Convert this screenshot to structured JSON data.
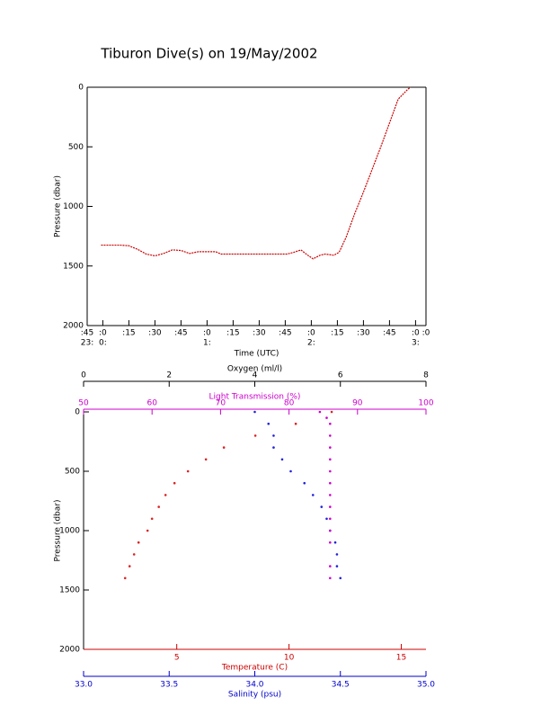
{
  "chart_data": [
    {
      "type": "line",
      "title": "Tiburon Dive(s) on 19/May/2002",
      "ylabel": "Pressure (dbar)",
      "xlabel": "Time (UTC)",
      "ylim": [
        0,
        2000
      ],
      "y_inverted": true,
      "yticks": [
        0,
        500,
        1000,
        1500,
        2000
      ],
      "xlim": [
        -9,
        186
      ],
      "xticks": [
        {
          "value": -9,
          "label": ":45",
          "hour": "23:"
        },
        {
          "value": 0,
          "label": ":0",
          "hour": "0:"
        },
        {
          "value": 15,
          "label": ":15"
        },
        {
          "value": 30,
          "label": ":30"
        },
        {
          "value": 45,
          "label": ":45"
        },
        {
          "value": 60,
          "label": ":0",
          "hour": "1:"
        },
        {
          "value": 75,
          "label": ":15"
        },
        {
          "value": 90,
          "label": ":30"
        },
        {
          "value": 105,
          "label": ":45"
        },
        {
          "value": 120,
          "label": ":0",
          "hour": "2:"
        },
        {
          "value": 135,
          "label": ":15"
        },
        {
          "value": 150,
          "label": ":30"
        },
        {
          "value": 165,
          "label": ":45"
        },
        {
          "value": 180,
          "label": ":0",
          "hour": "3:"
        },
        {
          "value": 186,
          "label": ":0"
        }
      ],
      "color": "#cc0000",
      "x": [
        -1,
        5,
        10,
        15,
        20,
        25,
        30,
        35,
        40,
        45,
        50,
        55,
        65,
        68,
        80,
        90,
        100,
        106,
        110,
        114,
        118,
        121,
        125,
        128,
        133,
        136,
        140,
        145,
        150,
        155,
        160,
        165,
        170,
        175,
        177
      ],
      "values": [
        1325,
        1325,
        1325,
        1330,
        1360,
        1400,
        1415,
        1395,
        1365,
        1370,
        1395,
        1380,
        1380,
        1400,
        1400,
        1400,
        1400,
        1400,
        1385,
        1365,
        1410,
        1440,
        1410,
        1400,
        1410,
        1385,
        1260,
        1060,
        880,
        690,
        500,
        300,
        100,
        25,
        0
      ]
    },
    {
      "type": "scatter",
      "ylabel": "Pressure (dbar)",
      "ylim": [
        0,
        2000
      ],
      "y_inverted": true,
      "yticks": [
        0,
        500,
        1000,
        1500,
        2000
      ],
      "x_axes": [
        {
          "label": "Oxygen (ml/l)",
          "color": "#000000",
          "position": "top",
          "xlim": [
            0,
            8
          ],
          "xticks": [
            0,
            2,
            4,
            6,
            8
          ]
        },
        {
          "label": "Light Transmission (%)",
          "color": "#cc00cc",
          "position": "top",
          "xlim": [
            50,
            100
          ],
          "xticks": [
            50,
            60,
            70,
            80,
            90,
            100
          ]
        },
        {
          "label": "Temperature (C)",
          "color": "#cc0000",
          "position": "bottom",
          "xlim": [
            0.85,
            16.1
          ],
          "xticks": [
            5,
            10,
            15
          ]
        },
        {
          "label": "Salinity (psu)",
          "color": "#0000cc",
          "position": "bottom",
          "xlim": [
            33,
            35
          ],
          "xticks": [
            {
              "value": 33,
              "label": "33.0"
            },
            {
              "value": 33.5,
              "label": "33.5"
            },
            {
              "value": 34,
              "label": "34.0"
            },
            {
              "value": 34.5,
              "label": "34.5"
            },
            {
              "value": 35,
              "label": "35.0"
            }
          ]
        }
      ],
      "series": [
        {
          "axis": 2,
          "color": "#dd2222",
          "x": [
            11.9,
            10.3,
            8.5,
            7.1,
            6.3,
            5.5,
            4.9,
            4.5,
            4.2,
            3.9,
            3.7,
            3.3,
            3.1,
            2.9,
            2.7
          ],
          "y": [
            0,
            100,
            200,
            300,
            400,
            500,
            600,
            700,
            800,
            900,
            1000,
            1100,
            1200,
            1300,
            1400
          ]
        },
        {
          "axis": 3,
          "color": "#2222dd",
          "x": [
            34.0,
            34.08,
            34.11,
            34.11,
            34.16,
            34.21,
            34.29,
            34.34,
            34.39,
            34.42,
            34.44,
            34.47,
            34.48,
            34.48,
            34.5
          ],
          "y": [
            0,
            100,
            200,
            300,
            400,
            500,
            600,
            700,
            800,
            900,
            1000,
            1100,
            1200,
            1300,
            1400
          ]
        },
        {
          "axis": 1,
          "color": "#cc00cc",
          "x": [
            84.5,
            85.5,
            86,
            86,
            86,
            86,
            86,
            86,
            86,
            86,
            86,
            86,
            86,
            86,
            86
          ],
          "y": [
            0,
            50,
            100,
            200,
            300,
            400,
            500,
            600,
            700,
            800,
            900,
            1000,
            1100,
            1300,
            1400
          ]
        }
      ]
    }
  ]
}
